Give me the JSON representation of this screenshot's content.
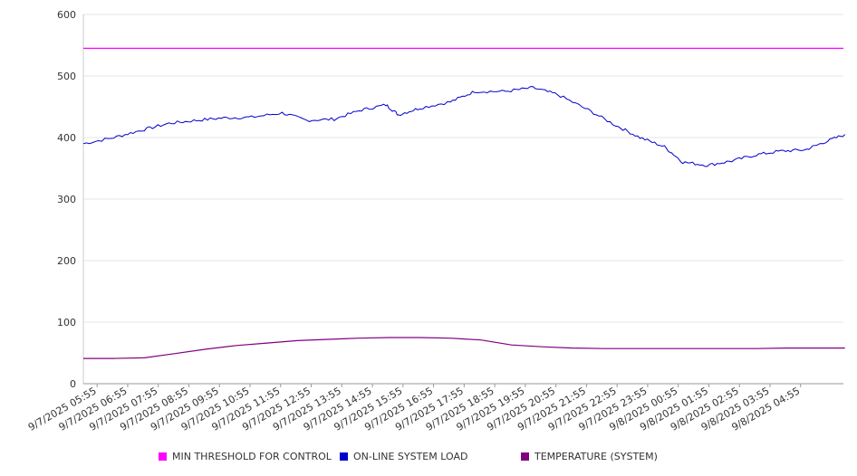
{
  "chart_data": {
    "type": "line",
    "title": "",
    "xlabel": "",
    "ylabel": "",
    "ylim": [
      0,
      600
    ],
    "yticks": [
      "0",
      "100",
      "200",
      "300",
      "400",
      "500",
      "600"
    ],
    "grid": true,
    "legend_position": "bottom",
    "x_tick_labels": [
      "9/7/2025 05:55",
      "9/7/2025 06:55",
      "9/7/2025 07:55",
      "9/7/2025 08:55",
      "9/7/2025 09:55",
      "9/7/2025 10:55",
      "9/7/2025 11:55",
      "9/7/2025 12:55",
      "9/7/2025 13:55",
      "9/7/2025 14:55",
      "9/7/2025 15:55",
      "9/7/2025 16:55",
      "9/7/2025 17:55",
      "9/7/2025 18:55",
      "9/7/2025 19:55",
      "9/7/2025 20:55",
      "9/7/2025 21:55",
      "9/7/2025 22:55",
      "9/7/2025 23:55",
      "9/8/2025 00:55",
      "9/8/2025 01:55",
      "9/8/2025 02:55",
      "9/8/2025 03:55",
      "9/8/2025 04:55"
    ],
    "series": [
      {
        "name": "MIN THRESHOLD FOR CONTROL",
        "color": "#ff00ff",
        "values": [
          545,
          545,
          545,
          545,
          545,
          545,
          545,
          545,
          545,
          545,
          545,
          545,
          545,
          545,
          545,
          545,
          545,
          545,
          545,
          545,
          545,
          545,
          545,
          545,
          545
        ]
      },
      {
        "name": "ON-LINE SYSTEM LOAD",
        "color": "#0000cc",
        "values": [
          390,
          400,
          412,
          423,
          428,
          432,
          433,
          440,
          428,
          430,
          445,
          453,
          437,
          448,
          458,
          475,
          475,
          481,
          470,
          445,
          420,
          400,
          385,
          360,
          355,
          362,
          372,
          378,
          380,
          392,
          405
        ],
        "x_hours": [
          0,
          1,
          1.9,
          2.8,
          3.7,
          4.6,
          5.5,
          6.5,
          7.3,
          8.2,
          9.1,
          9.9,
          10.3,
          11,
          12,
          12.8,
          13.8,
          14.7,
          15.5,
          16.5,
          17.4,
          18.2,
          19,
          19.6,
          20.4,
          21.2,
          22,
          22.8,
          23.6,
          24.2,
          24.9
        ]
      },
      {
        "name": "TEMPERATURE (SYSTEM)",
        "color": "#800080",
        "values": [
          41,
          41,
          42,
          49,
          56,
          62,
          66,
          70,
          72,
          74,
          75,
          75,
          74,
          71,
          63,
          60,
          58,
          57,
          57,
          57,
          57,
          57,
          57,
          58,
          58
        ],
        "x_hours": [
          0,
          1,
          2,
          3,
          4,
          5,
          6,
          7,
          8,
          9,
          10,
          11,
          12,
          13,
          14,
          15,
          16,
          17,
          18,
          19,
          20,
          21,
          22,
          23,
          24.9
        ]
      }
    ]
  }
}
